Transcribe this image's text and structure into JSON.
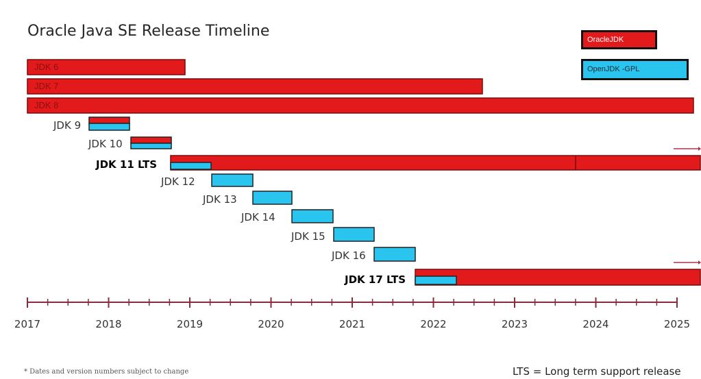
{
  "title": "Oracle Java SE Release Timeline",
  "legend": {
    "oracle_label": "OracleJDK",
    "openjdk_label": "OpenJDK -GPL",
    "oracle_color": "#e31a1c",
    "openjdk_color": "#29c5ee"
  },
  "releases": {
    "jdk6": "JDK 6",
    "jdk7": "JDK 7",
    "jdk8": "JDK 8",
    "jdk9": "JDK 9",
    "jdk10": "JDK 10",
    "jdk11": "JDK 11 LTS",
    "jdk12": "JDK 12",
    "jdk13": "JDK 13",
    "jdk14": "JDK 14",
    "jdk15": "JDK 15",
    "jdk16": "JDK 16",
    "jdk17": "JDK 17 LTS"
  },
  "axis_years": [
    "2017",
    "2018",
    "2019",
    "2020",
    "2021",
    "2022",
    "2023",
    "2024",
    "2025"
  ],
  "footnote": "* Dates and version numbers subject to change",
  "lts_note": "LTS = Long term support release"
}
